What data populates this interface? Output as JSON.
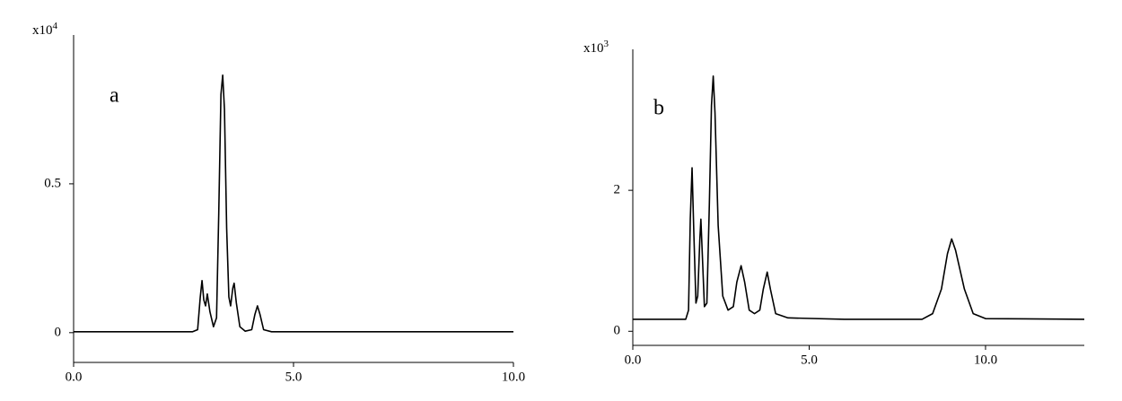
{
  "chart_data": [
    {
      "type": "line",
      "label": "a",
      "multiplier": "x10",
      "multiplier_exp": "4",
      "color": "#000000",
      "xlim": [
        0,
        10
      ],
      "xticks": [
        {
          "value": 0,
          "label": "0.0"
        },
        {
          "value": 5,
          "label": "5.0"
        },
        {
          "value": 10,
          "label": "10.0"
        }
      ],
      "ylim": [
        -0.1,
        1.0
      ],
      "yticks": [
        0,
        0.5
      ],
      "x": [
        0,
        2.7,
        2.82,
        2.88,
        2.92,
        2.96,
        3.0,
        3.04,
        3.1,
        3.18,
        3.25,
        3.3,
        3.35,
        3.39,
        3.43,
        3.48,
        3.53,
        3.57,
        3.62,
        3.65,
        3.7,
        3.78,
        3.9,
        4.05,
        4.12,
        4.18,
        4.24,
        4.32,
        4.5,
        10
      ],
      "values": [
        0.003,
        0.003,
        0.01,
        0.12,
        0.175,
        0.11,
        0.09,
        0.13,
        0.07,
        0.02,
        0.05,
        0.4,
        0.8,
        0.865,
        0.75,
        0.35,
        0.12,
        0.09,
        0.15,
        0.166,
        0.1,
        0.02,
        0.005,
        0.01,
        0.06,
        0.09,
        0.06,
        0.01,
        0.003,
        0.003
      ]
    },
    {
      "type": "line",
      "label": "b",
      "multiplier": "x10",
      "multiplier_exp": "3",
      "color": "#000000",
      "xlim": [
        0,
        12.8
      ],
      "xticks": [
        {
          "value": 0,
          "label": "0.0"
        },
        {
          "value": 5,
          "label": "5.0"
        },
        {
          "value": 10,
          "label": "10.0"
        }
      ],
      "ylim": [
        -0.2,
        4
      ],
      "yticks": [
        0,
        2
      ],
      "x": [
        0,
        1.5,
        1.58,
        1.63,
        1.68,
        1.73,
        1.79,
        1.84,
        1.9,
        1.93,
        1.97,
        2.03,
        2.1,
        2.17,
        2.23,
        2.28,
        2.33,
        2.42,
        2.55,
        2.7,
        2.85,
        2.95,
        3.07,
        3.17,
        3.3,
        3.45,
        3.6,
        3.7,
        3.81,
        3.9,
        4.05,
        4.4,
        6,
        8.2,
        8.5,
        8.75,
        8.92,
        9.04,
        9.15,
        9.4,
        9.65,
        10,
        12.8
      ],
      "values": [
        0.17,
        0.17,
        0.3,
        1.6,
        2.32,
        1.4,
        0.4,
        0.5,
        1.3,
        1.59,
        1.1,
        0.35,
        0.4,
        1.8,
        3.2,
        3.62,
        3.1,
        1.5,
        0.5,
        0.3,
        0.35,
        0.7,
        0.93,
        0.7,
        0.3,
        0.25,
        0.3,
        0.6,
        0.84,
        0.6,
        0.25,
        0.19,
        0.17,
        0.17,
        0.25,
        0.6,
        1.1,
        1.31,
        1.15,
        0.6,
        0.25,
        0.18,
        0.17
      ]
    }
  ]
}
